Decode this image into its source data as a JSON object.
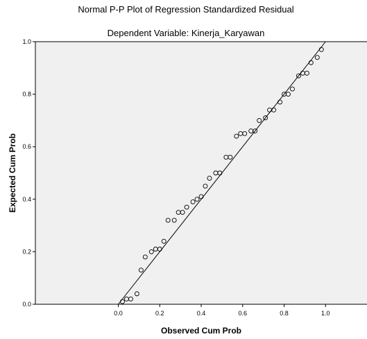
{
  "chart_data": {
    "type": "scatter",
    "title": "Normal P-P Plot of Regression Standardized Residual",
    "subtitle": "Dependent Variable: Kinerja_Karyawan",
    "xlabel": "Observed Cum Prob",
    "ylabel": "Expected Cum Prob",
    "xlim": [
      -0.4,
      1.2
    ],
    "ylim": [
      0.0,
      1.0
    ],
    "x_ticks": [
      "0.0",
      "0.2",
      "0.4",
      "0.6",
      "0.8",
      "1.0"
    ],
    "y_ticks": [
      "0.0",
      "0.2",
      "0.4",
      "0.6",
      "0.8",
      "1.0"
    ],
    "grid": false,
    "reference_line": {
      "from": [
        0,
        0
      ],
      "to": [
        1,
        1
      ]
    },
    "marker": "hollow-circle",
    "plot_background": "#f0f0f0",
    "points": [
      {
        "x": 0.02,
        "y": 0.01
      },
      {
        "x": 0.04,
        "y": 0.02
      },
      {
        "x": 0.06,
        "y": 0.02
      },
      {
        "x": 0.09,
        "y": 0.04
      },
      {
        "x": 0.11,
        "y": 0.13
      },
      {
        "x": 0.13,
        "y": 0.18
      },
      {
        "x": 0.16,
        "y": 0.2
      },
      {
        "x": 0.18,
        "y": 0.21
      },
      {
        "x": 0.2,
        "y": 0.21
      },
      {
        "x": 0.22,
        "y": 0.24
      },
      {
        "x": 0.24,
        "y": 0.32
      },
      {
        "x": 0.27,
        "y": 0.32
      },
      {
        "x": 0.29,
        "y": 0.35
      },
      {
        "x": 0.31,
        "y": 0.35
      },
      {
        "x": 0.33,
        "y": 0.37
      },
      {
        "x": 0.36,
        "y": 0.39
      },
      {
        "x": 0.38,
        "y": 0.4
      },
      {
        "x": 0.4,
        "y": 0.41
      },
      {
        "x": 0.42,
        "y": 0.45
      },
      {
        "x": 0.44,
        "y": 0.48
      },
      {
        "x": 0.47,
        "y": 0.5
      },
      {
        "x": 0.49,
        "y": 0.5
      },
      {
        "x": 0.52,
        "y": 0.56
      },
      {
        "x": 0.54,
        "y": 0.56
      },
      {
        "x": 0.57,
        "y": 0.64
      },
      {
        "x": 0.59,
        "y": 0.65
      },
      {
        "x": 0.61,
        "y": 0.65
      },
      {
        "x": 0.64,
        "y": 0.66
      },
      {
        "x": 0.66,
        "y": 0.66
      },
      {
        "x": 0.68,
        "y": 0.7
      },
      {
        "x": 0.71,
        "y": 0.71
      },
      {
        "x": 0.73,
        "y": 0.74
      },
      {
        "x": 0.75,
        "y": 0.74
      },
      {
        "x": 0.78,
        "y": 0.77
      },
      {
        "x": 0.8,
        "y": 0.8
      },
      {
        "x": 0.82,
        "y": 0.8
      },
      {
        "x": 0.84,
        "y": 0.82
      },
      {
        "x": 0.87,
        "y": 0.87
      },
      {
        "x": 0.89,
        "y": 0.88
      },
      {
        "x": 0.91,
        "y": 0.88
      },
      {
        "x": 0.93,
        "y": 0.92
      },
      {
        "x": 0.96,
        "y": 0.94
      },
      {
        "x": 0.98,
        "y": 0.97
      }
    ]
  }
}
